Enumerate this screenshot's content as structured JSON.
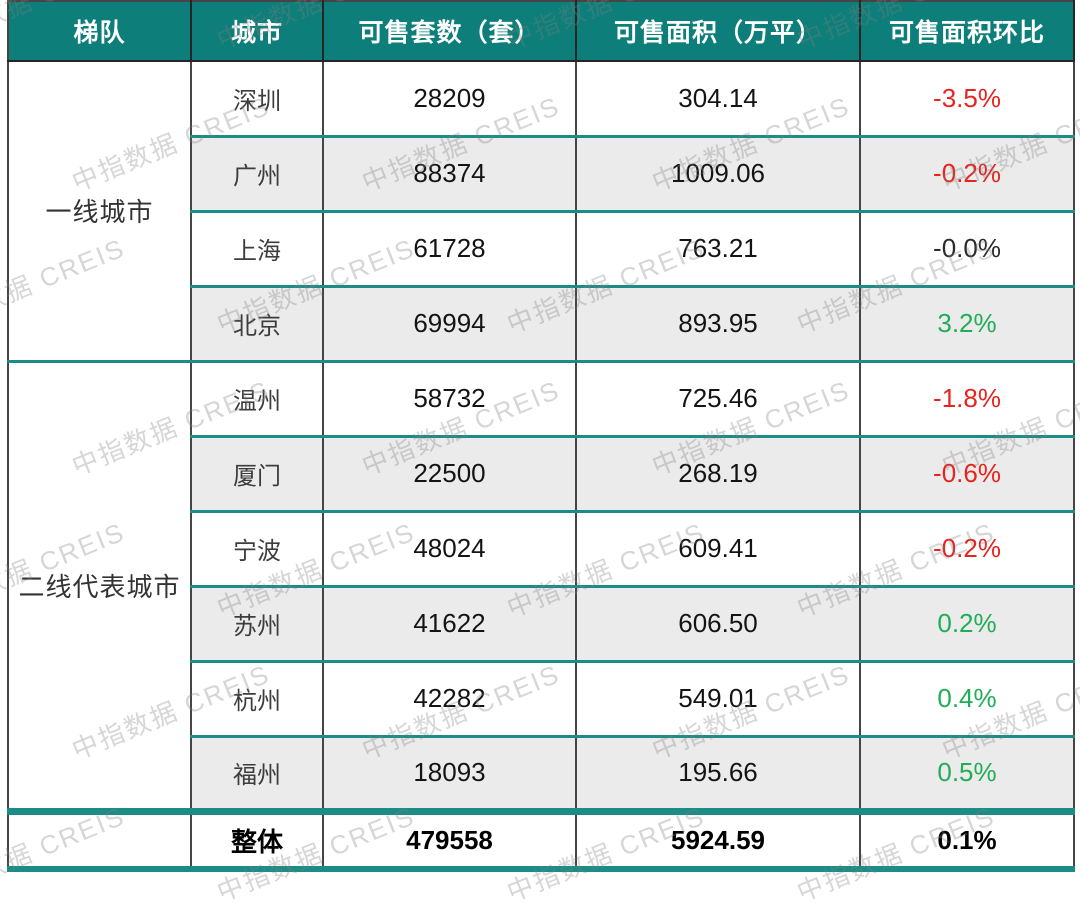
{
  "colors": {
    "header_bg": "#0d7e79",
    "divider_teal": "#1b8c86",
    "grid_dark": "#454545",
    "row_alt_bg": "#ebebeb",
    "negative_red": "#e8231d",
    "positive_green": "#21ad56",
    "neutral_dark": "#2b2b2b"
  },
  "watermark": {
    "text": "中指数据 CREIS"
  },
  "table": {
    "headers": [
      "梯队",
      "城市",
      "可售套数（套）",
      "可售面积（万平）",
      "可售面积环比"
    ],
    "groups": [
      {
        "tier": "一线城市",
        "rows": [
          {
            "city": "深圳",
            "units": "28209",
            "area": "304.14",
            "mom": "-3.5%",
            "trend": "down"
          },
          {
            "city": "广州",
            "units": "88374",
            "area": "1009.06",
            "mom": "-0.2%",
            "trend": "down"
          },
          {
            "city": "上海",
            "units": "61728",
            "area": "763.21",
            "mom": "-0.0%",
            "trend": "flat"
          },
          {
            "city": "北京",
            "units": "69994",
            "area": "893.95",
            "mom": "3.2%",
            "trend": "up"
          }
        ]
      },
      {
        "tier": "二线代表城市",
        "rows": [
          {
            "city": "温州",
            "units": "58732",
            "area": "725.46",
            "mom": "-1.8%",
            "trend": "down"
          },
          {
            "city": "厦门",
            "units": "22500",
            "area": "268.19",
            "mom": "-0.6%",
            "trend": "down"
          },
          {
            "city": "宁波",
            "units": "48024",
            "area": "609.41",
            "mom": "-0.2%",
            "trend": "down"
          },
          {
            "city": "苏州",
            "units": "41622",
            "area": "606.50",
            "mom": "0.2%",
            "trend": "up"
          },
          {
            "city": "杭州",
            "units": "42282",
            "area": "549.01",
            "mom": "0.4%",
            "trend": "up"
          },
          {
            "city": "福州",
            "units": "18093",
            "area": "195.66",
            "mom": "0.5%",
            "trend": "up"
          }
        ]
      }
    ],
    "total": {
      "tier": "",
      "label": "整体",
      "units": "479558",
      "area": "5924.59",
      "mom": "0.1%",
      "trend": "up"
    }
  },
  "chart_data": {
    "type": "table",
    "columns": [
      "梯队",
      "城市",
      "可售套数（套）",
      "可售面积（万平）",
      "可售面积环比"
    ],
    "rows": [
      [
        "一线城市",
        "深圳",
        "28209",
        "304.14",
        "-3.5%"
      ],
      [
        "一线城市",
        "广州",
        "88374",
        "1009.06",
        "-0.2%"
      ],
      [
        "一线城市",
        "上海",
        "61728",
        "763.21",
        "-0.0%"
      ],
      [
        "一线城市",
        "北京",
        "69994",
        "893.95",
        "3.2%"
      ],
      [
        "二线代表城市",
        "温州",
        "58732",
        "725.46",
        "-1.8%"
      ],
      [
        "二线代表城市",
        "厦门",
        "22500",
        "268.19",
        "-0.6%"
      ],
      [
        "二线代表城市",
        "宁波",
        "48024",
        "609.41",
        "-0.2%"
      ],
      [
        "二线代表城市",
        "苏州",
        "41622",
        "606.50",
        "0.2%"
      ],
      [
        "二线代表城市",
        "杭州",
        "42282",
        "549.01",
        "0.4%"
      ],
      [
        "二线代表城市",
        "福州",
        "18093",
        "195.66",
        "0.5%"
      ],
      [
        "",
        "整体",
        "479558",
        "5924.59",
        "0.1%"
      ]
    ],
    "notes": "watermark 中指数据 CREIS tiled diagonally; negative MoM in red, positive in green, -0.0% in dark gray"
  }
}
